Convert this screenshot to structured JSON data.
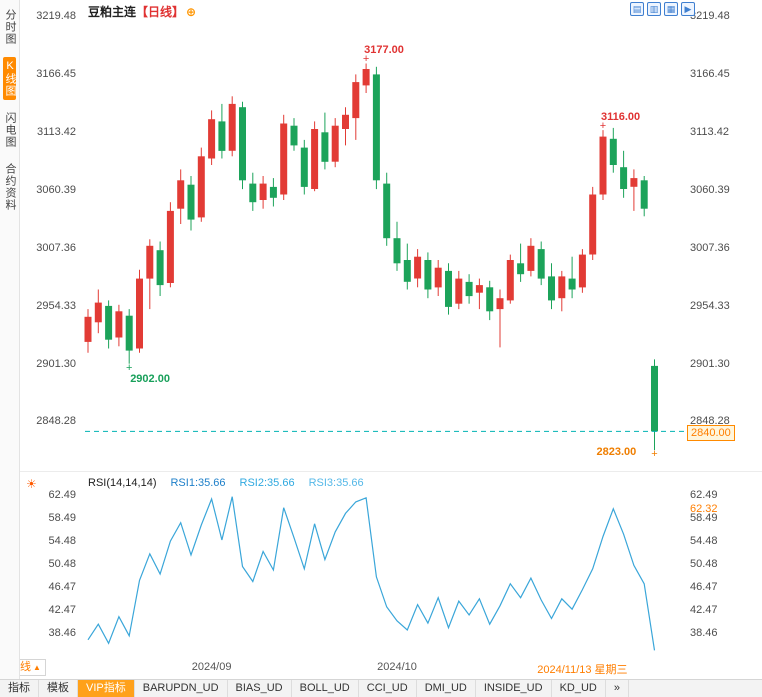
{
  "header": {
    "symbol": "豆粕主连",
    "period_tag": "【日线】",
    "plus_icon": "⊕"
  },
  "sidebar": {
    "items": [
      {
        "label": "分时图",
        "active": false
      },
      {
        "label": "K线图",
        "active": true
      },
      {
        "label": "闪电图",
        "active": false
      },
      {
        "label": "合约资料",
        "active": false
      }
    ]
  },
  "toolbar_icons": [
    {
      "name": "grid-layout-icon",
      "glyph": "▤"
    },
    {
      "name": "multi-chart-icon",
      "glyph": "▥"
    },
    {
      "name": "board-layout-icon",
      "glyph": "▦"
    },
    {
      "name": "play-forward-icon",
      "glyph": "▶"
    }
  ],
  "rsi_header": {
    "icon": "☀",
    "label": "RSI(14,14,14)",
    "rsi1": "RSI1:35.66",
    "rsi2": "RSI2:35.66",
    "rsi3": "RSI3:35.66"
  },
  "footer": {
    "period_label": "日线",
    "period_arrow": "▲",
    "tabs": [
      {
        "label": "指标",
        "active": false
      },
      {
        "label": "模板",
        "active": false
      },
      {
        "label": "VIP指标",
        "active": true
      },
      {
        "label": "BARUPDN_UD",
        "active": false
      },
      {
        "label": "BIAS_UD",
        "active": false
      },
      {
        "label": "BOLL_UD",
        "active": false
      },
      {
        "label": "CCI_UD",
        "active": false
      },
      {
        "label": "DMI_UD",
        "active": false
      },
      {
        "label": "INSIDE_UD",
        "active": false
      },
      {
        "label": "KD_UD",
        "active": false
      },
      {
        "label": "»",
        "active": false
      }
    ]
  },
  "colors": {
    "up": "#e23b35",
    "down": "#1ca35a",
    "rsi_line": "#3aa6d9",
    "dashed_line": "#00b2b2",
    "annotation_red": "#e03232",
    "annotation_green": "#18a05a",
    "annotation_orange": "#ef7e00",
    "accent_orange": "#ff8a00",
    "icon_blue": "#3f7fd0"
  },
  "chart_data": {
    "type": "candlestick+line",
    "symbol": "豆粕主连",
    "period": "日线",
    "price_panel": {
      "ticks": [
        3219.48,
        3166.45,
        3113.42,
        3060.39,
        3007.36,
        2954.33,
        2901.3,
        2848.28
      ],
      "ymin": 2812,
      "ymax": 3226,
      "current_price": 2840.0,
      "annotations": [
        {
          "text": "3177.00",
          "index": 27,
          "value": 3177,
          "color_key": "annotation_red",
          "placement": "above"
        },
        {
          "text": "2902.00",
          "index": 4,
          "value": 2902,
          "color_key": "annotation_green",
          "placement": "below"
        },
        {
          "text": "3116.00",
          "index": 50,
          "value": 3116,
          "color_key": "annotation_red",
          "placement": "above"
        },
        {
          "text": "2823.00",
          "index": 55,
          "value": 2823,
          "color_key": "annotation_orange",
          "placement": "left"
        }
      ],
      "candles": [
        [
          2922,
          2952,
          2912,
          2945
        ],
        [
          2940,
          2970,
          2930,
          2958
        ],
        [
          2955,
          2960,
          2916,
          2924
        ],
        [
          2926,
          2956,
          2918,
          2950
        ],
        [
          2946,
          2952,
          2902,
          2914
        ],
        [
          2916,
          2988,
          2912,
          2980
        ],
        [
          2980,
          3016,
          2952,
          3010
        ],
        [
          3006,
          3014,
          2964,
          2974
        ],
        [
          2976,
          3050,
          2972,
          3042
        ],
        [
          3044,
          3080,
          3030,
          3070
        ],
        [
          3066,
          3074,
          3024,
          3034
        ],
        [
          3036,
          3100,
          3032,
          3092
        ],
        [
          3090,
          3134,
          3084,
          3126
        ],
        [
          3124,
          3140,
          3090,
          3097
        ],
        [
          3097,
          3147,
          3092,
          3140
        ],
        [
          3137,
          3142,
          3062,
          3070
        ],
        [
          3067,
          3077,
          3042,
          3050
        ],
        [
          3052,
          3074,
          3044,
          3067
        ],
        [
          3064,
          3072,
          3046,
          3054
        ],
        [
          3057,
          3130,
          3052,
          3122
        ],
        [
          3120,
          3127,
          3097,
          3102
        ],
        [
          3100,
          3107,
          3057,
          3064
        ],
        [
          3062,
          3124,
          3060,
          3117
        ],
        [
          3114,
          3132,
          3080,
          3087
        ],
        [
          3087,
          3127,
          3082,
          3120
        ],
        [
          3117,
          3137,
          3102,
          3130
        ],
        [
          3127,
          3167,
          3107,
          3160
        ],
        [
          3157,
          3177,
          3150,
          3172
        ],
        [
          3167,
          3174,
          3062,
          3070
        ],
        [
          3067,
          3077,
          3010,
          3017
        ],
        [
          3017,
          3032,
          2987,
          2994
        ],
        [
          2997,
          3012,
          2970,
          2977
        ],
        [
          2980,
          3007,
          2972,
          3000
        ],
        [
          2997,
          3004,
          2962,
          2970
        ],
        [
          2972,
          2997,
          2964,
          2990
        ],
        [
          2987,
          2994,
          2947,
          2954
        ],
        [
          2957,
          2987,
          2952,
          2980
        ],
        [
          2977,
          2984,
          2957,
          2964
        ],
        [
          2967,
          2980,
          2952,
          2974
        ],
        [
          2972,
          2978,
          2942,
          2950
        ],
        [
          2952,
          2970,
          2917,
          2962
        ],
        [
          2960,
          3002,
          2957,
          2997
        ],
        [
          2994,
          3012,
          2977,
          2984
        ],
        [
          2987,
          3017,
          2982,
          3010
        ],
        [
          3007,
          3014,
          2974,
          2980
        ],
        [
          2982,
          2994,
          2952,
          2960
        ],
        [
          2962,
          2987,
          2950,
          2982
        ],
        [
          2980,
          3000,
          2962,
          2970
        ],
        [
          2972,
          3007,
          2967,
          3002
        ],
        [
          3002,
          3064,
          2997,
          3057
        ],
        [
          3057,
          3116,
          3052,
          3110
        ],
        [
          3108,
          3118,
          3077,
          3084
        ],
        [
          3082,
          3097,
          3054,
          3062
        ],
        [
          3064,
          3080,
          3042,
          3072
        ],
        [
          3070,
          3074,
          3037,
          3044
        ],
        [
          2900,
          2906,
          2823,
          2840
        ]
      ]
    },
    "rsi_panel": {
      "label": "RSI(14,14,14)",
      "series_labels": [
        "RSI1:35.66",
        "RSI2:35.66",
        "RSI3:35.66"
      ],
      "ticks": [
        62.49,
        58.49,
        54.48,
        50.48,
        46.47,
        42.47,
        38.46
      ],
      "ymin": 34,
      "ymax": 64.5,
      "right_extra_label": "62.32",
      "values": [
        37.5,
        40.2,
        36.9,
        41.5,
        38.2,
        47.8,
        52.4,
        48.9,
        54.6,
        57.8,
        52.2,
        57.4,
        61.9,
        54.8,
        62.3,
        50.2,
        47.6,
        52.8,
        49.6,
        60.4,
        55.2,
        49.8,
        57.6,
        51.4,
        56.2,
        59.4,
        61.4,
        62.1,
        48.4,
        43.2,
        40.8,
        39.2,
        43.6,
        40.4,
        44.8,
        39.6,
        44.2,
        41.8,
        44.6,
        40.2,
        43.4,
        47.2,
        44.8,
        48.2,
        44.4,
        41.2,
        44.6,
        42.8,
        46.2,
        49.8,
        55.4,
        60.2,
        55.8,
        50.4,
        47.2,
        35.66
      ]
    },
    "x_ticks": [
      {
        "label": "2024/09",
        "index": 12,
        "highlight": false
      },
      {
        "label": "2024/10",
        "index": 30,
        "highlight": false
      },
      {
        "label": "2024/11/13 星期三",
        "index": 48,
        "highlight": true
      }
    ]
  }
}
